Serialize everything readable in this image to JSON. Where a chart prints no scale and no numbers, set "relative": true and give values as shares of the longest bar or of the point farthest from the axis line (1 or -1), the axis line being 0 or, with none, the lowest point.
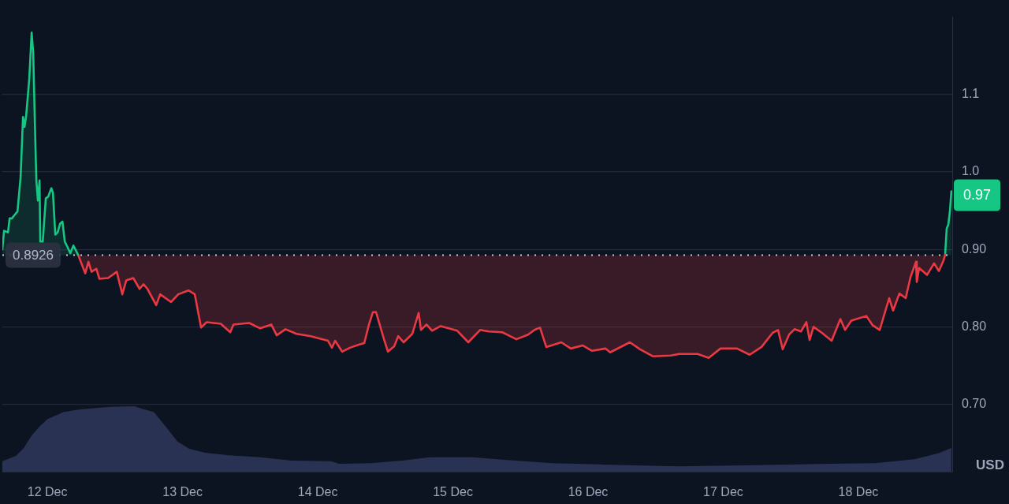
{
  "chart_data": [
    {
      "type": "area",
      "ylabel": "USD",
      "xlim": [
        "--12-11T16:00",
        "--12-18T16:40"
      ],
      "ylim": [
        0.613,
        1.2
      ],
      "yticks": [
        {
          "value": 0.7,
          "label": "0.70"
        },
        {
          "value": 0.8,
          "label": "0.80"
        },
        {
          "value": 0.9,
          "label": "0.90"
        },
        {
          "value": 1,
          "label": "1.0"
        },
        1.1
      ],
      "tick_labels": "y",
      "grid": "y",
      "ref_lines": [
        {
          "axis": "y",
          "value": 0.8926,
          "label": "0.8926",
          "color": "#c3c8d4",
          "line_style": "dotted"
        }
      ],
      "annotations": [
        {
          "text": "0.97",
          "x": "--12-18T16:31",
          "y": 0.97
        }
      ],
      "series": [
        {
          "color": "#16c784",
          "x": [
            "--12-11T16:00",
            "--12-11T16:18",
            "--12-11T17:00",
            "--12-11T17:17",
            "--12-11T17:42",
            "--12-11T18:07",
            "--12-11T18:41",
            "--12-11T19:14",
            "--12-11T19:40",
            "--12-11T19:56",
            "--12-11T20:13",
            "--12-11T20:30",
            "--12-11T20:47",
            "--12-11T21:12",
            "--12-11T21:29",
            "--12-11T21:46",
            "--12-11T22:02",
            "--12-11T22:19",
            "--12-11T22:36",
            "--12-11T22:44",
            "--12-11T23:10",
            "--12-11T23:43",
            "--12-12T00:08",
            "--12-12T00:42",
            "--12-12T00:59",
            "--12-12T01:24",
            "--12-12T01:49",
            "--12-12T02:14",
            "--12-12T02:40",
            "--12-12T03:05",
            "--12-12T03:30",
            "--12-12T04:04",
            "--12-12T04:37",
            "--12-12T05:27"
          ],
          "values": [
            0.9,
            0.924,
            0.922,
            0.94,
            0.94,
            0.944,
            0.949,
            0.993,
            1.071,
            1.058,
            1.072,
            1.096,
            1.121,
            1.18,
            1.153,
            1.065,
            0.989,
            0.963,
            0.989,
            0.91,
            0.91,
            0.966,
            0.968,
            0.979,
            0.973,
            0.919,
            0.922,
            0.933,
            0.936,
            0.91,
            0.904,
            0.895,
            0.905,
            0.893
          ]
        },
        {
          "color": "#ea3943",
          "x": [
            "--12-12T05:27",
            "--12-12T06:43",
            "--12-12T07:17",
            "--12-12T07:50",
            "--12-12T08:41",
            "--12-12T09:14",
            "--12-12T10:47",
            "--12-12T12:19",
            "--12-12T13:18",
            "--12-12T14:00",
            "--12-12T15:15",
            "--12-12T16:22",
            "--12-12T17:04",
            "--12-12T17:46",
            "--12-12T19:19",
            "--12-12T20:01",
            "--12-12T21:58",
            "--12-12T23:14",
            "--12-13T01:03",
            "--12-13T02:10",
            "--12-13T03:17",
            "--12-13T04:16",
            "--12-13T06:47",
            "--12-13T08:28",
            "--12-13T09:02",
            "--12-13T11:50",
            "--12-13T13:47",
            "--12-13T15:45",
            "--12-13T16:43",
            "--12-13T18:16",
            "--12-13T20:13",
            "--12-13T22:44",
            "--12-14T01:49",
            "--12-14T02:31",
            "--12-14T03:05",
            "--12-14T04:20",
            "--12-14T05:44",
            "--12-14T07:17",
            "--12-14T08:16",
            "--12-14T09:06",
            "--12-14T09:48",
            "--12-14T10:21",
            "--12-14T11:46",
            "--12-14T12:28",
            "--12-14T13:35",
            "--12-14T14:17",
            "--12-14T15:15",
            "--12-14T16:48",
            "--12-14T17:55",
            "--12-14T18:20",
            "--12-14T19:19",
            "--12-14T20:18",
            "--12-14T21:50",
            "--12-15T00:46",
            "--12-15T02:44",
            "--12-15T04:50",
            "--12-15T06:22",
            "--12-15T08:45",
            "--12-15T09:35",
            "--12-15T11:16",
            "--12-15T13:22",
            "--12-15T14:29",
            "--12-15T15:28",
            "--12-15T16:35",
            "--12-15T19:15",
            "--12-15T20:56",
            "--12-15T23:02",
            "--12-16T00:42",
            "--12-16T03:05",
            "--12-16T03:55",
            "--12-16T07:25",
            "--12-16T09:14",
            "--12-16T11:29",
            "--12-16T14:42",
            "--12-16T16:14",
            "--12-16T19:27",
            "--12-16T21:25",
            "--12-16T23:31",
            "--12-17T02:27",
            "--12-17T04:42",
            "--12-17T06:48",
            "--12-17T08:45",
            "--12-17T09:44",
            "--12-17T10:34",
            "--12-17T11:42",
            "--12-17T12:40",
            "--12-17T13:48",
            "--12-17T14:46",
            "--12-17T15:20",
            "--12-17T16:02",
            "--12-17T17:34",
            "--12-17T19:15",
            "--12-17T20:48",
            "--12-17T21:38",
            "--12-17T22:45",
            "--12-18T01:25",
            "--12-18T02:32",
            "--12-18T03:47",
            "--12-18T05:28",
            "--12-18T06:10",
            "--12-18T07:17",
            "--12-18T08:24",
            "--12-18T09:15",
            "--12-18T10:14",
            "--12-18T10:22",
            "--12-18T10:47",
            "--12-18T12:11",
            "--12-18T13:27",
            "--12-18T14:17",
            "--12-18T15:08",
            "--12-18T15:24"
          ],
          "values": [
            0.893,
            0.869,
            0.884,
            0.871,
            0.875,
            0.862,
            0.863,
            0.871,
            0.842,
            0.86,
            0.863,
            0.849,
            0.855,
            0.849,
            0.828,
            0.842,
            0.832,
            0.842,
            0.847,
            0.842,
            0.799,
            0.806,
            0.804,
            0.793,
            0.803,
            0.805,
            0.798,
            0.803,
            0.789,
            0.797,
            0.791,
            0.788,
            0.782,
            0.773,
            0.782,
            0.768,
            0.773,
            0.777,
            0.779,
            0.803,
            0.819,
            0.819,
            0.784,
            0.768,
            0.775,
            0.788,
            0.78,
            0.791,
            0.818,
            0.796,
            0.803,
            0.795,
            0.801,
            0.795,
            0.78,
            0.796,
            0.794,
            0.793,
            0.79,
            0.784,
            0.79,
            0.796,
            0.799,
            0.774,
            0.78,
            0.772,
            0.776,
            0.769,
            0.772,
            0.767,
            0.78,
            0.771,
            0.762,
            0.763,
            0.765,
            0.765,
            0.76,
            0.772,
            0.772,
            0.764,
            0.774,
            0.792,
            0.796,
            0.771,
            0.79,
            0.797,
            0.794,
            0.806,
            0.783,
            0.8,
            0.792,
            0.782,
            0.81,
            0.796,
            0.808,
            0.814,
            0.802,
            0.796,
            0.837,
            0.821,
            0.843,
            0.837,
            0.864,
            0.884,
            0.858,
            0.876,
            0.867,
            0.882,
            0.872,
            0.886,
            0.893
          ]
        },
        {
          "color": "#16c784",
          "x": [
            "--12-18T15:24",
            "--12-18T15:41",
            "--12-18T15:58",
            "--12-18T16:15",
            "--12-18T16:31"
          ],
          "values": [
            0.893,
            0.927,
            0.932,
            0.949,
            0.975
          ]
        }
      ]
    },
    {
      "type": "area",
      "relative": true,
      "xlim": [
        "--12-11T16:00",
        "--12-18T16:40"
      ],
      "xticks": [
        {
          "value": "--12-12",
          "label": "12 Dec"
        },
        {
          "value": "--12-13",
          "label": "13 Dec"
        },
        {
          "value": "--12-14",
          "label": "14 Dec"
        },
        {
          "value": "--12-15",
          "label": "15 Dec"
        },
        {
          "value": "--12-16",
          "label": "16 Dec"
        },
        {
          "value": "--12-17",
          "label": "17 Dec"
        },
        {
          "value": "--12-18",
          "label": "18 Dec"
        }
      ],
      "series": [
        {
          "color": "#2a3254",
          "x": [
            "--12-11T16:00",
            "--12-11T18:24",
            "--12-11T19:48",
            "--12-11T21:12",
            "--12-11T22:36",
            "--12-12T00:00",
            "--12-12T02:48",
            "--12-12T05:36",
            "--12-12T08:24",
            "--12-12T11:12",
            "--12-12T15:24",
            "--12-12T16:48",
            "--12-12T18:54",
            "--12-12T21:00",
            "--12-12T23:05",
            "--12-13T01:12",
            "--12-13T03:59",
            "--12-13T08:11",
            "--12-13T13:47",
            "--12-13T19:23",
            "--12-14T02:23",
            "--12-14T03:47",
            "--12-14T09:23",
            "--12-14T14:59",
            "--12-14T19:53",
            "--12-15T03:34",
            "--12-15T09:10",
            "--12-15T17:34",
            "--12-16T01:58",
            "--12-16T15:58",
            "--12-17T05:57",
            "--12-17T18:57",
            "--12-18T02:57",
            "--12-18T09:57",
            "--12-18T14:09",
            "--12-18T16:31"
          ],
          "values": [
            0.16,
            0.24,
            0.36,
            0.55,
            0.69,
            0.8,
            0.91,
            0.95,
            0.97,
            0.99,
            1,
            0.96,
            0.91,
            0.69,
            0.46,
            0.35,
            0.29,
            0.25,
            0.22,
            0.17,
            0.16,
            0.12,
            0.13,
            0.17,
            0.22,
            0.22,
            0.18,
            0.13,
            0.11,
            0.08,
            0.1,
            0.12,
            0.13,
            0.19,
            0.28,
            0.36
          ]
        }
      ]
    }
  ]
}
